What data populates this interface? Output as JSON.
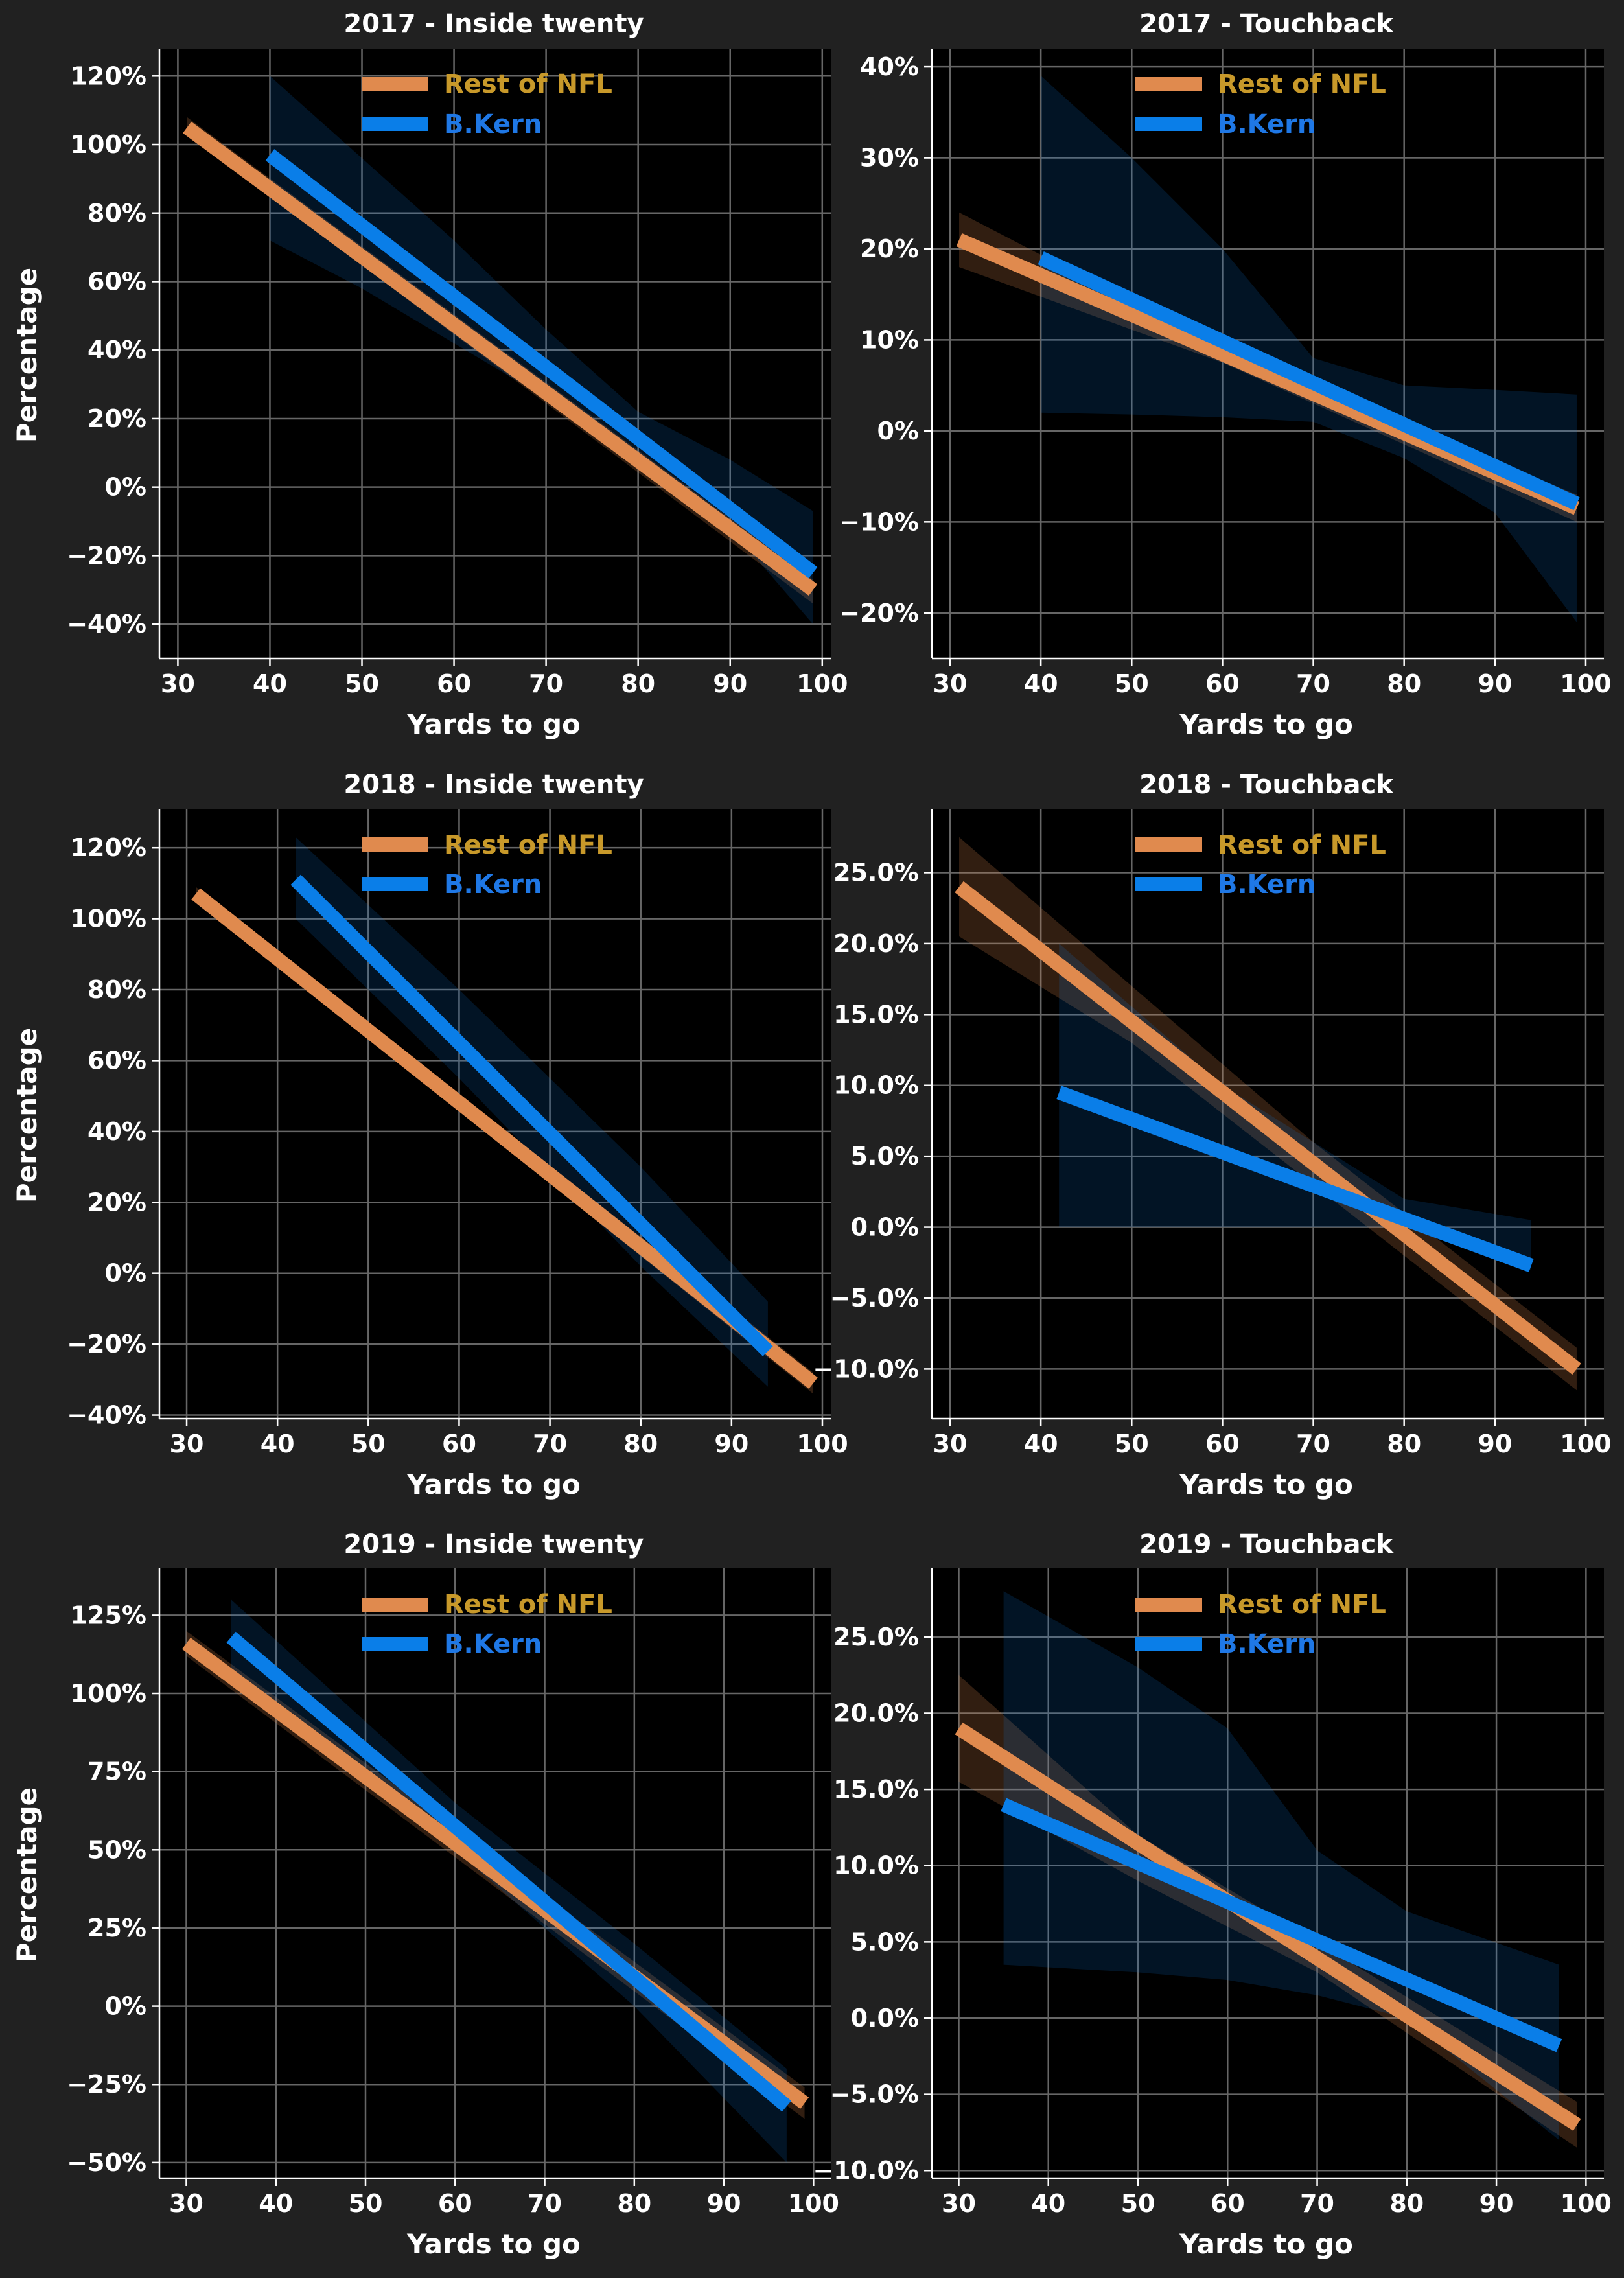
{
  "colors": {
    "figure_bg": "#212121",
    "axes_bg": "#000000",
    "grid": "#666666",
    "rest_line": "#e08a4e",
    "kern_line": "#0a7ee8",
    "rest_legend_text": "#c8992a",
    "kern_legend_text": "#1f78e6",
    "text": "#ffffff"
  },
  "chart_data": [
    {
      "type": "line",
      "title": "2017 - Inside twenty",
      "xlabel": "Yards to go",
      "ylabel": "Percentage",
      "xlim": [
        28,
        101
      ],
      "ylim": [
        -50,
        128
      ],
      "xticks": [
        30,
        40,
        50,
        60,
        70,
        80,
        90,
        100
      ],
      "yticks": [
        -40,
        -20,
        0,
        20,
        40,
        60,
        80,
        100,
        120
      ],
      "ytick_labels": [
        "−40%",
        "−20%",
        "0%",
        "20%",
        "40%",
        "60%",
        "80%",
        "100%",
        "120%"
      ],
      "grid": true,
      "legend": "top-center",
      "series": [
        {
          "name": "Rest of NFL",
          "x": [
            31,
            99
          ],
          "y": [
            105,
            -30
          ],
          "band_x": [
            31,
            99
          ],
          "band_lo": [
            103,
            -34
          ],
          "band_hi": [
            108,
            -27
          ]
        },
        {
          "name": "B.Kern",
          "x": [
            40,
            99
          ],
          "y": [
            97,
            -25
          ],
          "band_x": [
            40,
            50,
            60,
            70,
            80,
            90,
            99
          ],
          "band_lo": [
            72,
            58,
            42,
            26,
            10,
            -12,
            -40
          ],
          "band_hi": [
            120,
            96,
            72,
            46,
            22,
            8,
            -7
          ]
        }
      ]
    },
    {
      "type": "line",
      "title": "2017 - Touchback",
      "xlabel": "Yards to go",
      "ylabel": "",
      "xlim": [
        28,
        102
      ],
      "ylim": [
        -25,
        42
      ],
      "xticks": [
        30,
        40,
        50,
        60,
        70,
        80,
        90,
        100
      ],
      "yticks": [
        -20,
        -10,
        0,
        10,
        20,
        30,
        40
      ],
      "ytick_labels": [
        "−20%",
        "−10%",
        "0%",
        "10%",
        "20%",
        "30%",
        "40%"
      ],
      "grid": true,
      "legend": "top-center",
      "series": [
        {
          "name": "Rest of NFL",
          "x": [
            31,
            99
          ],
          "y": [
            21,
            -8.5
          ],
          "band_x": [
            31,
            60,
            99
          ],
          "band_lo": [
            18,
            7.5,
            -10
          ],
          "band_hi": [
            24,
            9,
            -7
          ]
        },
        {
          "name": "B.Kern",
          "x": [
            40,
            99
          ],
          "y": [
            19,
            -8
          ],
          "band_x": [
            40,
            50,
            60,
            70,
            80,
            90,
            99
          ],
          "band_lo": [
            2,
            1.8,
            1.5,
            1,
            -3,
            -9,
            -21
          ],
          "band_hi": [
            39,
            30,
            20,
            8,
            5,
            4.5,
            4
          ]
        }
      ]
    },
    {
      "type": "line",
      "title": "2018 - Inside twenty",
      "xlabel": "Yards to go",
      "ylabel": "Percentage",
      "xlim": [
        27,
        101
      ],
      "ylim": [
        -41,
        131
      ],
      "xticks": [
        30,
        40,
        50,
        60,
        70,
        80,
        90,
        100
      ],
      "yticks": [
        -40,
        -20,
        0,
        20,
        40,
        60,
        80,
        100,
        120
      ],
      "ytick_labels": [
        "−40%",
        "−20%",
        "0%",
        "20%",
        "40%",
        "60%",
        "80%",
        "100%",
        "120%"
      ],
      "grid": true,
      "legend": "top-center",
      "series": [
        {
          "name": "Rest of NFL",
          "x": [
            31,
            99
          ],
          "y": [
            107,
            -31
          ],
          "band_x": [
            31,
            99
          ],
          "band_lo": [
            105,
            -34
          ],
          "band_hi": [
            109,
            -28
          ]
        },
        {
          "name": "B.Kern",
          "x": [
            42,
            94
          ],
          "y": [
            111,
            -22
          ],
          "band_x": [
            42,
            60,
            80,
            94
          ],
          "band_lo": [
            100,
            55,
            2,
            -32
          ],
          "band_hi": [
            123,
            80,
            30,
            -8
          ]
        }
      ]
    },
    {
      "type": "line",
      "title": "2018 - Touchback",
      "xlabel": "Yards to go",
      "ylabel": "",
      "xlim": [
        28,
        102
      ],
      "ylim": [
        -13.5,
        29.5
      ],
      "xticks": [
        30,
        40,
        50,
        60,
        70,
        80,
        90,
        100
      ],
      "yticks": [
        -10,
        -5,
        0,
        5,
        10,
        15,
        20,
        25
      ],
      "ytick_labels": [
        "−10.0%",
        "−5.0%",
        "0.0%",
        "5.0%",
        "10.0%",
        "15.0%",
        "20.0%",
        "25.0%"
      ],
      "grid": true,
      "legend": "top-center",
      "series": [
        {
          "name": "Rest of NFL",
          "x": [
            31,
            99
          ],
          "y": [
            24,
            -10
          ],
          "band_x": [
            31,
            50,
            70,
            99
          ],
          "band_lo": [
            20.5,
            13,
            3,
            -11.5
          ],
          "band_hi": [
            27.5,
            17,
            6,
            -8.5
          ]
        },
        {
          "name": "B.Kern",
          "x": [
            42,
            94
          ],
          "y": [
            9.5,
            -2.7
          ],
          "band_x": [
            42,
            60,
            80,
            94
          ],
          "band_lo": [
            0,
            0,
            0,
            -3
          ],
          "band_hi": [
            20,
            10,
            2,
            0.5
          ]
        }
      ]
    },
    {
      "type": "line",
      "title": "2019 - Inside twenty",
      "xlabel": "Yards to go",
      "ylabel": "Percentage",
      "xlim": [
        27,
        102
      ],
      "ylim": [
        -55,
        140
      ],
      "xticks": [
        30,
        40,
        50,
        60,
        70,
        80,
        90,
        100
      ],
      "yticks": [
        -50,
        -25,
        0,
        25,
        50,
        75,
        100,
        125
      ],
      "ytick_labels": [
        "−50%",
        "−25%",
        "0%",
        "25%",
        "50%",
        "75%",
        "100%",
        "125%"
      ],
      "grid": true,
      "legend": "top-center",
      "series": [
        {
          "name": "Rest of NFL",
          "x": [
            30,
            99
          ],
          "y": [
            116,
            -31
          ],
          "band_x": [
            30,
            99
          ],
          "band_lo": [
            112,
            -36
          ],
          "band_hi": [
            120,
            -26
          ]
        },
        {
          "name": "B.Kern",
          "x": [
            35,
            97
          ],
          "y": [
            118,
            -32
          ],
          "band_x": [
            35,
            60,
            80,
            97
          ],
          "band_lo": [
            105,
            50,
            0,
            -50
          ],
          "band_hi": [
            130,
            65,
            20,
            -20
          ]
        }
      ]
    },
    {
      "type": "line",
      "title": "2019 - Touchback",
      "xlabel": "Yards to go",
      "ylabel": "",
      "xlim": [
        27,
        102
      ],
      "ylim": [
        -10.5,
        29.5
      ],
      "xticks": [
        30,
        40,
        50,
        60,
        70,
        80,
        90,
        100
      ],
      "yticks": [
        -10,
        -5,
        0,
        5,
        10,
        15,
        20,
        25
      ],
      "ytick_labels": [
        "−10.0%",
        "−5.0%",
        "0.0%",
        "5.0%",
        "10.0%",
        "15.0%",
        "20.0%",
        "25.0%"
      ],
      "grid": true,
      "legend": "top-center",
      "series": [
        {
          "name": "Rest of NFL",
          "x": [
            30,
            99
          ],
          "y": [
            19,
            -7
          ],
          "band_x": [
            30,
            50,
            70,
            99
          ],
          "band_lo": [
            15.5,
            9,
            3,
            -8.5
          ],
          "band_hi": [
            22.5,
            12,
            5,
            -5.5
          ]
        },
        {
          "name": "B.Kern",
          "x": [
            35,
            97
          ],
          "y": [
            14,
            -1.8
          ],
          "band_x": [
            35,
            50,
            60,
            70,
            80,
            97
          ],
          "band_lo": [
            3.5,
            3,
            2.5,
            1.5,
            0,
            -8
          ],
          "band_hi": [
            28,
            23,
            19,
            11,
            7,
            3.5
          ]
        }
      ]
    }
  ]
}
